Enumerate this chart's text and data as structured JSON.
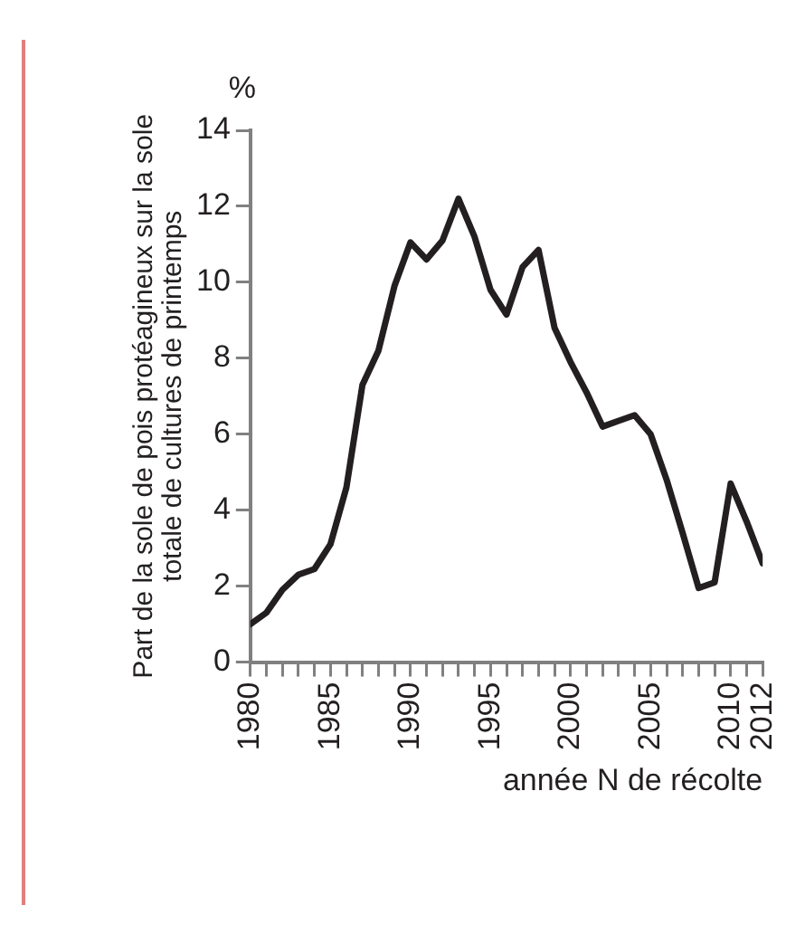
{
  "chart_data": {
    "type": "line",
    "ylabel": "Part de la sole de pois protéagineux sur la sole\ntotale de cultures de printemps",
    "xlabel": "année N de récolte",
    "annotations": [
      "%"
    ],
    "x": [
      1980,
      1981,
      1982,
      1983,
      1984,
      1985,
      1986,
      1987,
      1988,
      1989,
      1990,
      1991,
      1992,
      1993,
      1994,
      1995,
      1996,
      1997,
      1998,
      1999,
      2000,
      2001,
      2002,
      2003,
      2004,
      2005,
      2006,
      2007,
      2008,
      2009,
      2010,
      2011,
      2012
    ],
    "series": [
      {
        "color": "#231f20",
        "values": [
          1.0,
          1.3,
          1.9,
          2.3,
          2.45,
          3.1,
          4.6,
          7.3,
          8.2,
          9.9,
          11.05,
          10.6,
          11.1,
          12.2,
          11.2,
          9.8,
          9.15,
          10.4,
          10.85,
          8.8,
          7.9,
          7.1,
          6.2,
          6.35,
          6.5,
          6.0,
          4.8,
          3.4,
          1.95,
          2.1,
          4.7,
          3.7,
          2.6
        ]
      }
    ],
    "xlim": [
      1980,
      2012
    ],
    "ylim": [
      0,
      14
    ],
    "yticks": [
      0,
      2,
      4,
      6,
      8,
      10,
      12,
      14
    ],
    "xticks": [
      1980,
      {
        "value": 1981,
        "label": null
      },
      {
        "value": 1982,
        "label": null
      },
      {
        "value": 1983,
        "label": null
      },
      {
        "value": 1984,
        "label": null
      },
      1985,
      {
        "value": 1986,
        "label": null
      },
      {
        "value": 1987,
        "label": null
      },
      {
        "value": 1988,
        "label": null
      },
      {
        "value": 1989,
        "label": null
      },
      1990,
      {
        "value": 1991,
        "label": null
      },
      {
        "value": 1992,
        "label": null
      },
      {
        "value": 1993,
        "label": null
      },
      {
        "value": 1994,
        "label": null
      },
      1995,
      {
        "value": 1996,
        "label": null
      },
      {
        "value": 1997,
        "label": null
      },
      {
        "value": 1998,
        "label": null
      },
      {
        "value": 1999,
        "label": null
      },
      2000,
      {
        "value": 2001,
        "label": null
      },
      {
        "value": 2002,
        "label": null
      },
      {
        "value": 2003,
        "label": null
      },
      {
        "value": 2004,
        "label": null
      },
      2005,
      {
        "value": 2006,
        "label": null
      },
      {
        "value": 2007,
        "label": null
      },
      {
        "value": 2008,
        "label": null
      },
      {
        "value": 2009,
        "label": null
      },
      2010,
      {
        "value": 2011,
        "label": null
      },
      2012
    ],
    "grid": false,
    "legend": false,
    "marker": "none",
    "line_style": "solid"
  }
}
